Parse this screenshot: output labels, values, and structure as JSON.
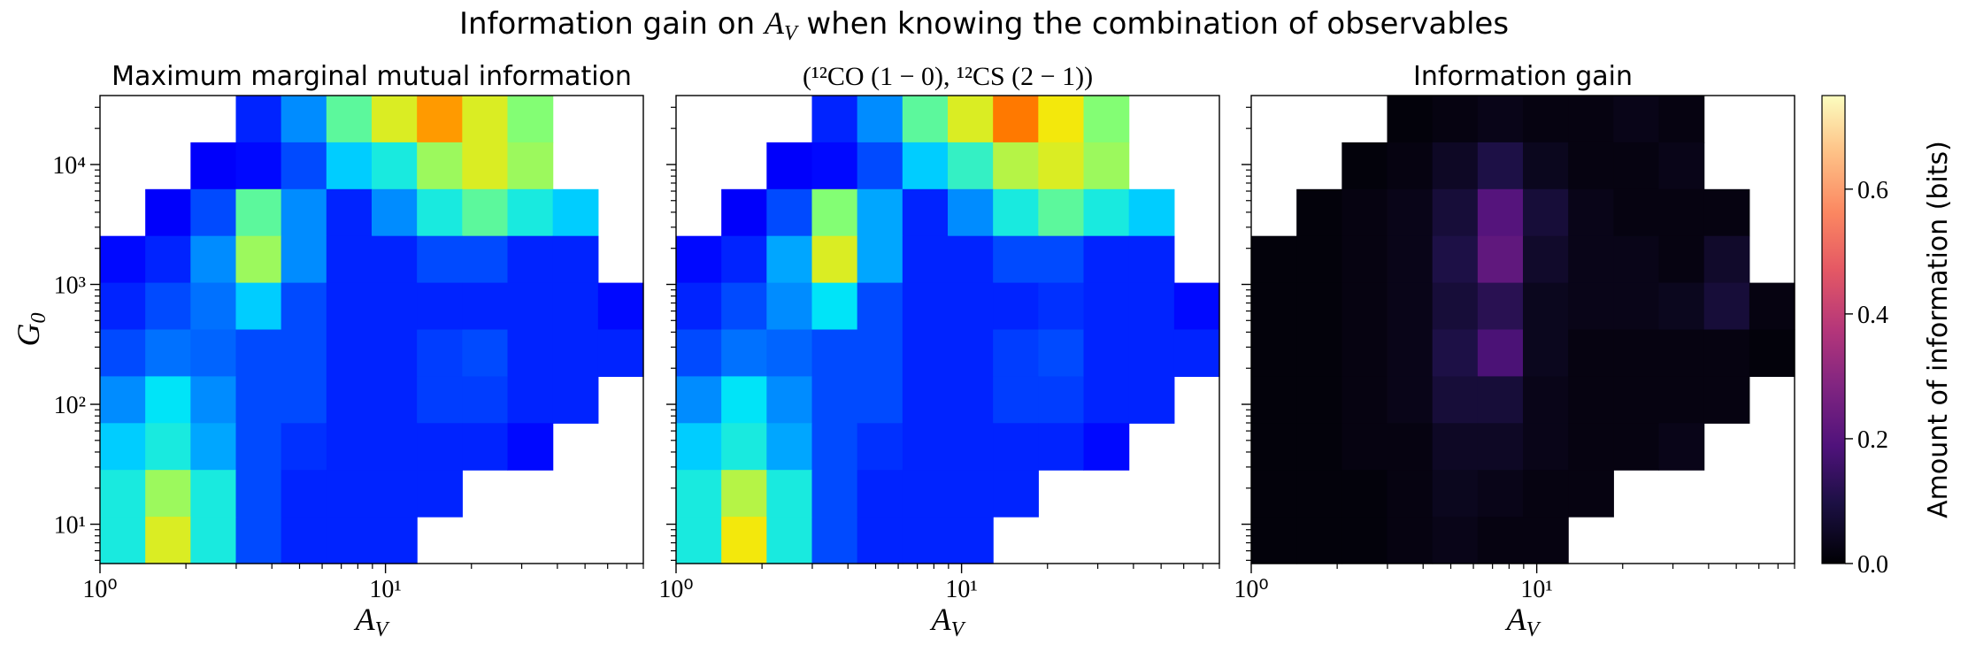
{
  "title_parts": [
    "Information gain on ",
    "A",
    "V",
    " when knowing the combination of observables"
  ],
  "chart_data": [
    {
      "type": "heatmap",
      "title": "Maximum marginal mutual information",
      "x_label": [
        "A",
        "V"
      ],
      "y_label": [
        "G",
        "0"
      ],
      "xlim": [
        1,
        80
      ],
      "ylim": [
        4.7,
        37600
      ],
      "xticks": [
        {
          "value": 1,
          "label": "10⁰"
        },
        {
          "value": 10,
          "label": "10¹"
        }
      ],
      "yticks": [
        {
          "value": 10,
          "label": "10¹"
        },
        {
          "value": 100,
          "label": "10²"
        },
        {
          "value": 1000,
          "label": "10³"
        },
        {
          "value": 10000,
          "label": "10⁴"
        }
      ],
      "ytick_labels": true,
      "log_x": true,
      "log_y": true,
      "colormap": "jet",
      "clim": [
        0,
        0.75
      ],
      "values": [
        [
          null,
          null,
          null,
          0.12,
          0.2,
          0.35,
          0.45,
          0.55,
          0.45,
          0.38,
          null,
          null
        ],
        [
          null,
          null,
          0.08,
          0.1,
          0.15,
          0.25,
          0.3,
          0.4,
          0.45,
          0.4,
          null,
          null
        ],
        [
          null,
          0.08,
          0.15,
          0.35,
          0.2,
          0.12,
          0.2,
          0.3,
          0.35,
          0.3,
          0.25,
          null
        ],
        [
          0.1,
          0.12,
          0.2,
          0.4,
          0.2,
          0.12,
          0.12,
          0.15,
          0.15,
          0.12,
          0.12,
          null
        ],
        [
          0.12,
          0.15,
          0.18,
          0.25,
          0.15,
          0.12,
          0.12,
          0.12,
          0.12,
          0.12,
          0.12,
          0.1
        ],
        [
          0.15,
          0.18,
          0.17,
          0.15,
          0.15,
          0.12,
          0.12,
          0.14,
          0.15,
          0.12,
          0.12,
          0.12
        ],
        [
          0.2,
          0.28,
          0.2,
          0.15,
          0.15,
          0.12,
          0.12,
          0.14,
          0.14,
          0.12,
          0.12,
          null
        ],
        [
          0.25,
          0.3,
          0.22,
          0.15,
          0.13,
          0.12,
          0.12,
          0.12,
          0.12,
          0.1,
          null,
          null
        ],
        [
          0.3,
          0.4,
          0.3,
          0.15,
          0.12,
          0.12,
          0.12,
          0.12,
          null,
          null,
          null,
          null
        ],
        [
          0.3,
          0.45,
          0.3,
          0.15,
          0.12,
          0.12,
          0.12,
          null,
          null,
          null,
          null,
          null
        ]
      ]
    },
    {
      "type": "heatmap",
      "title": "(¹²CO (1 − 0), ¹²CS (2 − 1))",
      "x_label": [
        "A",
        "V"
      ],
      "xlim": [
        1,
        80
      ],
      "ylim": [
        4.7,
        37600
      ],
      "xticks": [
        {
          "value": 1,
          "label": "10⁰"
        },
        {
          "value": 10,
          "label": "10¹"
        }
      ],
      "yticks": [
        10,
        100,
        1000,
        10000
      ],
      "ytick_labels": false,
      "log_x": true,
      "log_y": true,
      "colormap": "jet",
      "clim": [
        0,
        0.75
      ],
      "values": [
        [
          null,
          null,
          null,
          0.12,
          0.2,
          0.35,
          0.45,
          0.58,
          0.47,
          0.38,
          null,
          null
        ],
        [
          null,
          null,
          0.08,
          0.1,
          0.15,
          0.25,
          0.32,
          0.42,
          0.45,
          0.4,
          null,
          null
        ],
        [
          null,
          0.08,
          0.15,
          0.38,
          0.22,
          0.12,
          0.2,
          0.3,
          0.35,
          0.3,
          0.25,
          null
        ],
        [
          0.1,
          0.12,
          0.22,
          0.45,
          0.22,
          0.12,
          0.12,
          0.15,
          0.15,
          0.12,
          0.12,
          null
        ],
        [
          0.12,
          0.15,
          0.2,
          0.28,
          0.15,
          0.12,
          0.12,
          0.12,
          0.13,
          0.12,
          0.12,
          0.1
        ],
        [
          0.15,
          0.18,
          0.17,
          0.15,
          0.15,
          0.12,
          0.12,
          0.14,
          0.15,
          0.12,
          0.12,
          0.12
        ],
        [
          0.2,
          0.28,
          0.2,
          0.15,
          0.15,
          0.12,
          0.12,
          0.14,
          0.14,
          0.12,
          0.12,
          null
        ],
        [
          0.25,
          0.3,
          0.22,
          0.15,
          0.13,
          0.12,
          0.12,
          0.12,
          0.12,
          0.1,
          null,
          null
        ],
        [
          0.3,
          0.42,
          0.3,
          0.15,
          0.12,
          0.12,
          0.12,
          0.12,
          null,
          null,
          null,
          null
        ],
        [
          0.3,
          0.47,
          0.3,
          0.15,
          0.12,
          0.12,
          0.12,
          null,
          null,
          null,
          null,
          null
        ]
      ]
    },
    {
      "type": "heatmap",
      "title": "Information gain",
      "x_label": [
        "A",
        "V"
      ],
      "xlim": [
        1,
        80
      ],
      "ylim": [
        4.7,
        37600
      ],
      "xticks": [
        {
          "value": 1,
          "label": "10⁰"
        },
        {
          "value": 10,
          "label": "10¹"
        }
      ],
      "yticks": [
        10,
        100,
        1000,
        10000
      ],
      "ytick_labels": false,
      "log_x": true,
      "log_y": true,
      "colormap": "magma",
      "clim": [
        0,
        0.75
      ],
      "values": [
        [
          null,
          null,
          null,
          0.01,
          0.02,
          0.03,
          0.02,
          0.02,
          0.03,
          0.02,
          null,
          null
        ],
        [
          null,
          null,
          0.01,
          0.02,
          0.05,
          0.1,
          0.04,
          0.02,
          0.02,
          0.03,
          null,
          null
        ],
        [
          null,
          0.01,
          0.02,
          0.03,
          0.08,
          0.2,
          0.08,
          0.03,
          0.02,
          0.02,
          0.02,
          null
        ],
        [
          0.01,
          0.01,
          0.02,
          0.03,
          0.1,
          0.22,
          0.06,
          0.03,
          0.03,
          0.02,
          0.06,
          null
        ],
        [
          0.01,
          0.01,
          0.02,
          0.03,
          0.08,
          0.12,
          0.04,
          0.03,
          0.03,
          0.04,
          0.08,
          0.02
        ],
        [
          0.01,
          0.01,
          0.02,
          0.03,
          0.1,
          0.18,
          0.04,
          0.02,
          0.02,
          0.02,
          0.02,
          0.01
        ],
        [
          0.01,
          0.01,
          0.02,
          0.03,
          0.08,
          0.08,
          0.03,
          0.02,
          0.02,
          0.02,
          0.02,
          null
        ],
        [
          0.01,
          0.01,
          0.02,
          0.02,
          0.05,
          0.05,
          0.03,
          0.02,
          0.02,
          0.03,
          null,
          null
        ],
        [
          0.01,
          0.01,
          0.01,
          0.02,
          0.04,
          0.03,
          0.02,
          0.02,
          null,
          null,
          null,
          null
        ],
        [
          0.01,
          0.01,
          0.01,
          0.02,
          0.03,
          0.02,
          0.02,
          null,
          null,
          null,
          null,
          null
        ]
      ],
      "colorbar": {
        "label": "Amount of information (bits)",
        "ticks": [
          {
            "value": 0,
            "label": "0.0"
          },
          {
            "value": 0.2,
            "label": "0.2"
          },
          {
            "value": 0.4,
            "label": "0.4"
          },
          {
            "value": 0.6,
            "label": "0.6"
          }
        ]
      }
    }
  ]
}
